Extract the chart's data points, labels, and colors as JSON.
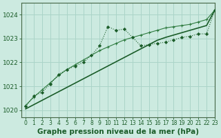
{
  "title": "Graphe pression niveau de la mer (hPa)",
  "bg_color": "#cceae0",
  "grid_color": "#aad4c8",
  "line_color_dark": "#1a5c28",
  "line_color_mid": "#2d7a3e",
  "ylim": [
    1019.7,
    1024.5
  ],
  "xlim": [
    -0.5,
    23
  ],
  "yticks": [
    1020,
    1021,
    1022,
    1023,
    1024
  ],
  "xticks": [
    0,
    1,
    2,
    3,
    4,
    5,
    6,
    7,
    8,
    9,
    10,
    11,
    12,
    13,
    14,
    15,
    16,
    17,
    18,
    19,
    20,
    21,
    22,
    23
  ],
  "series_jagged": [
    1020.15,
    1020.6,
    1020.75,
    1021.1,
    1021.5,
    1021.7,
    1021.85,
    1022.0,
    1022.3,
    1022.7,
    1023.5,
    1023.35,
    1023.4,
    1023.05,
    1022.7,
    1022.75,
    1022.8,
    1022.85,
    1022.95,
    1023.05,
    1023.1,
    1023.2,
    1023.2,
    1024.2
  ],
  "series_smooth": [
    1020.2,
    1020.55,
    1020.85,
    1021.15,
    1021.45,
    1021.7,
    1021.9,
    1022.1,
    1022.3,
    1022.5,
    1022.65,
    1022.8,
    1022.95,
    1023.05,
    1023.15,
    1023.25,
    1023.35,
    1023.45,
    1023.5,
    1023.55,
    1023.6,
    1023.7,
    1023.8,
    1024.2
  ],
  "series_linear": [
    1020.05,
    1020.23,
    1020.41,
    1020.59,
    1020.77,
    1020.95,
    1021.13,
    1021.31,
    1021.49,
    1021.67,
    1021.85,
    1022.03,
    1022.21,
    1022.39,
    1022.57,
    1022.75,
    1022.93,
    1023.05,
    1023.15,
    1023.25,
    1023.35,
    1023.45,
    1023.55,
    1024.2
  ],
  "font_size_label": 7.5,
  "font_size_tick": 6.5
}
